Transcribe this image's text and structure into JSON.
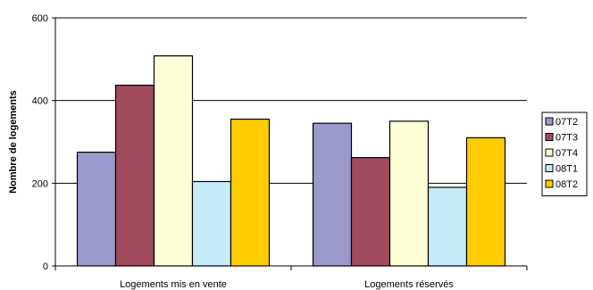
{
  "chart_data": {
    "type": "bar",
    "title": "",
    "xlabel": "",
    "ylabel": "Nombre de logements",
    "ylim": [
      0,
      600
    ],
    "yticks": [
      0,
      200,
      400,
      600
    ],
    "grid": true,
    "legend_position": "right",
    "categories": [
      "Logements mis en vente",
      "Logements réservés"
    ],
    "series": [
      {
        "name": "07T2",
        "color": "#9999cc",
        "values": [
          275,
          345
        ]
      },
      {
        "name": "07T3",
        "color": "#a04b5c",
        "values": [
          437,
          262
        ]
      },
      {
        "name": "07T4",
        "color": "#ffffd6",
        "values": [
          508,
          350
        ]
      },
      {
        "name": "08T1",
        "color": "#c6ecfa",
        "values": [
          204,
          190
        ]
      },
      {
        "name": "08T2",
        "color": "#ffcc00",
        "values": [
          355,
          310
        ]
      }
    ]
  }
}
